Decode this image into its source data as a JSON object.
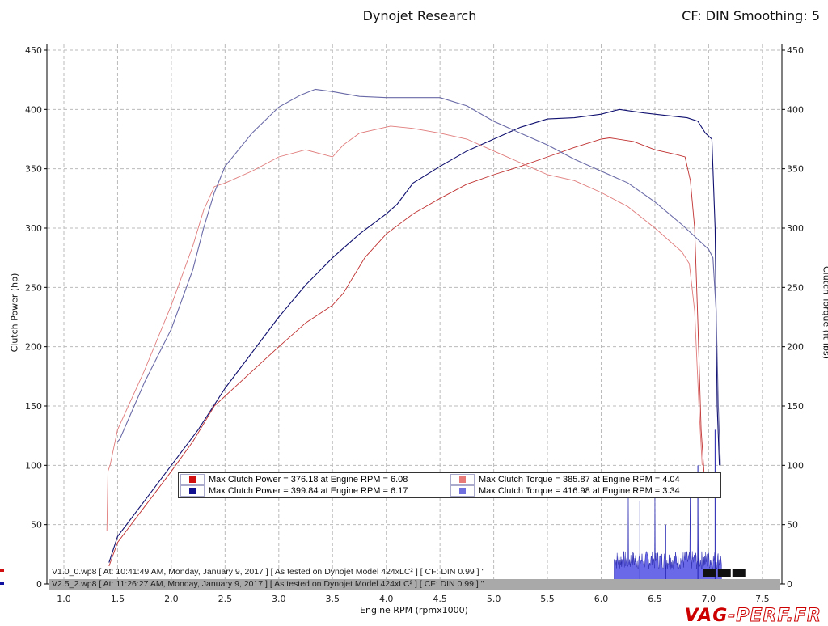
{
  "header": {
    "title": "Dynojet Research",
    "correction": "CF: DIN Smoothing: 5"
  },
  "runs": [
    "V1.0_0.wp8 [ At: 10:41:49 AM, Monday, January 9, 2017 ] [ As tested on Dynojet Model 424xLC² ] [ CF: DIN 0.99 ] \"",
    "V2.5_2.wp8 [ At: 11:26:27 AM, Monday, January 9, 2017 ] [ As tested on Dynojet Model 424xLC² ] [ CF: DIN 0.99 ] \""
  ],
  "legend": [
    {
      "label": "Max Clutch Power = 376.18 at Engine RPM = 6.08",
      "color": "#d01010"
    },
    {
      "label": "Max Clutch Torque = 385.87 at Engine RPM = 4.04",
      "color": "#e87a7a"
    },
    {
      "label": "Max Clutch Power = 399.84 at Engine RPM = 6.17",
      "color": "#101090"
    },
    {
      "label": "Max Clutch Torque = 416.98 at Engine RPM = 3.34",
      "color": "#7070e0"
    }
  ],
  "watermark": "VAG-PERF.FR",
  "chart_data": {
    "type": "line",
    "xlabel": "Engine RPM (rpmx1000)",
    "ylabel": "Clutch Power (hp)",
    "y2label": "Clutch Torque (ft-lbs)",
    "xlim": [
      0.9,
      7.8
    ],
    "ylim": [
      0,
      450
    ],
    "xticks": [
      "1.0",
      "1.5",
      "2.0",
      "2.5",
      "3.0",
      "3.5",
      "4.0",
      "4.5",
      "5.0",
      "5.5",
      "6.0",
      "6.5",
      "7.0",
      "7.5"
    ],
    "yticks": [
      "0",
      "50",
      "100",
      "150",
      "200",
      "250",
      "300",
      "350",
      "400",
      "450"
    ],
    "grid": true,
    "series": [
      {
        "color": "#c03030",
        "x": [
          1.42,
          1.5,
          1.75,
          2.0,
          2.2,
          2.4,
          2.7,
          3.0,
          3.25,
          3.5,
          3.6,
          3.8,
          4.0,
          4.25,
          4.5,
          4.75,
          5.0,
          5.25,
          5.5,
          5.75,
          6.0,
          6.08,
          6.3,
          6.5,
          6.7,
          6.78,
          6.83,
          6.87,
          6.9,
          6.93,
          6.96
        ],
        "y": [
          15,
          35,
          65,
          95,
          120,
          150,
          175,
          200,
          220,
          235,
          245,
          275,
          295,
          312,
          325,
          337,
          345,
          352,
          360,
          368,
          375,
          376,
          373,
          366,
          362,
          360,
          340,
          300,
          220,
          130,
          90
        ]
      },
      {
        "color": "#101070",
        "x": [
          1.42,
          1.5,
          1.75,
          2.0,
          2.25,
          2.5,
          2.75,
          3.0,
          3.25,
          3.5,
          3.75,
          4.0,
          4.1,
          4.25,
          4.5,
          4.75,
          5.0,
          5.25,
          5.5,
          5.75,
          6.0,
          6.17,
          6.4,
          6.6,
          6.8,
          6.9,
          6.97,
          7.03,
          7.06,
          7.08,
          7.1
        ],
        "y": [
          18,
          40,
          70,
          100,
          130,
          165,
          195,
          225,
          252,
          275,
          295,
          312,
          320,
          338,
          352,
          365,
          375,
          385,
          392,
          393,
          396,
          400,
          397,
          395,
          393,
          390,
          380,
          375,
          300,
          150,
          100
        ]
      },
      {
        "color": "#e07a7a",
        "x": [
          1.4,
          1.41,
          1.43,
          1.5,
          1.75,
          2.0,
          2.2,
          2.3,
          2.4,
          2.5,
          2.75,
          3.0,
          3.25,
          3.5,
          3.6,
          3.75,
          4.04,
          4.25,
          4.5,
          4.75,
          5.0,
          5.25,
          5.5,
          5.75,
          6.0,
          6.25,
          6.5,
          6.75,
          6.82,
          6.87,
          6.91,
          6.94
        ],
        "y": [
          45,
          95,
          100,
          130,
          180,
          235,
          285,
          315,
          335,
          338,
          348,
          360,
          366,
          360,
          370,
          380,
          386,
          384,
          380,
          375,
          365,
          355,
          345,
          340,
          330,
          318,
          300,
          280,
          270,
          230,
          150,
          100
        ]
      },
      {
        "color": "#6a6aa8",
        "x": [
          1.5,
          1.52,
          1.75,
          2.0,
          2.2,
          2.3,
          2.4,
          2.5,
          2.75,
          3.0,
          3.2,
          3.34,
          3.5,
          3.75,
          4.0,
          4.25,
          4.5,
          4.75,
          5.0,
          5.25,
          5.5,
          5.75,
          6.0,
          6.25,
          6.5,
          6.75,
          7.0,
          7.04,
          7.07,
          7.09,
          7.11
        ],
        "y": [
          120,
          122,
          170,
          215,
          265,
          300,
          330,
          352,
          380,
          402,
          412,
          417,
          415,
          411,
          410,
          410,
          410,
          403,
          390,
          380,
          370,
          358,
          348,
          338,
          322,
          303,
          282,
          275,
          230,
          150,
          100
        ]
      }
    ]
  }
}
